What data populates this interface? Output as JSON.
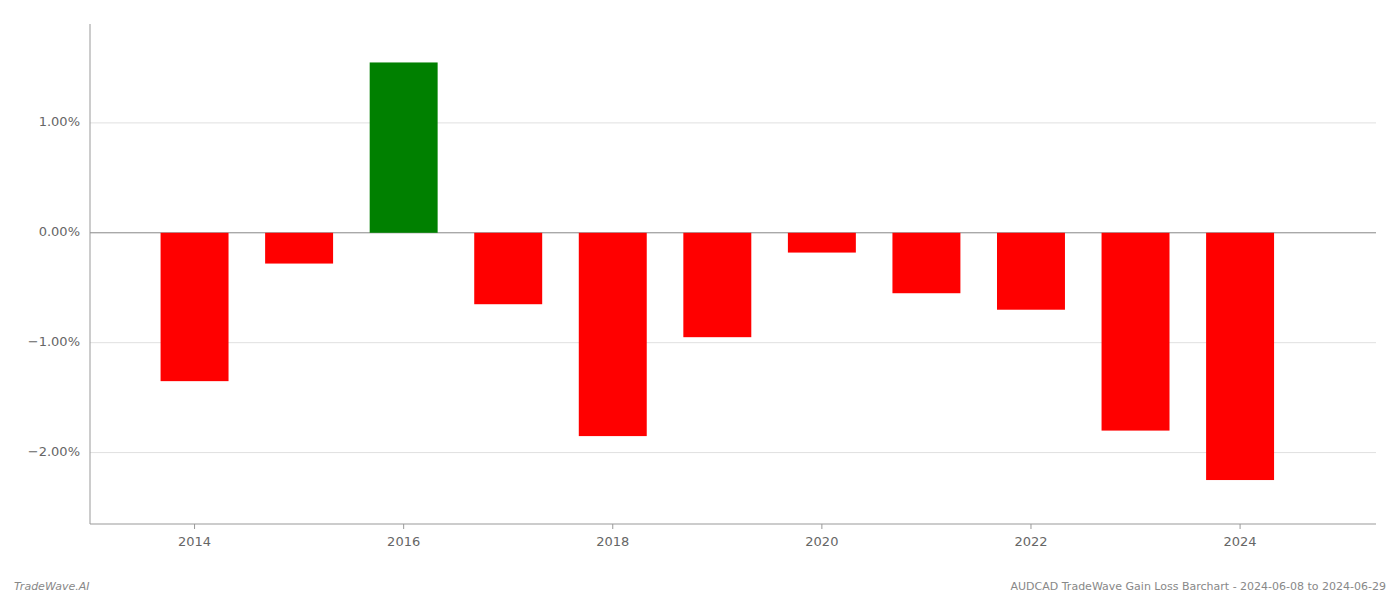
{
  "chart_data": {
    "type": "bar",
    "x": [
      2014,
      2015,
      2016,
      2017,
      2018,
      2019,
      2020,
      2021,
      2022,
      2023,
      2024
    ],
    "values": [
      -1.35,
      -0.28,
      1.55,
      -0.65,
      -1.85,
      -0.95,
      -0.18,
      -0.55,
      -0.7,
      -1.8,
      -2.25
    ],
    "colors": [
      "#ff0000",
      "#ff0000",
      "#008000",
      "#ff0000",
      "#ff0000",
      "#ff0000",
      "#ff0000",
      "#ff0000",
      "#ff0000",
      "#ff0000",
      "#ff0000"
    ],
    "xlim": [
      2013.0,
      2025.3
    ],
    "xticks": [
      2014,
      2016,
      2018,
      2020,
      2022,
      2024
    ],
    "ylim": [
      -2.65,
      1.9
    ],
    "yticks": [
      {
        "value": -2.0,
        "label": "−2.00%"
      },
      {
        "value": -1.0,
        "label": "−1.00%"
      },
      {
        "value": 0.0,
        "label": "0.00%"
      },
      {
        "value": 1.0,
        "label": "1.00%"
      }
    ],
    "grid": true,
    "annotations": [
      "TradeWave.AI",
      "AUDCAD TradeWave Gain Loss Barchart - 2024-06-08 to 2024-06-29"
    ]
  }
}
